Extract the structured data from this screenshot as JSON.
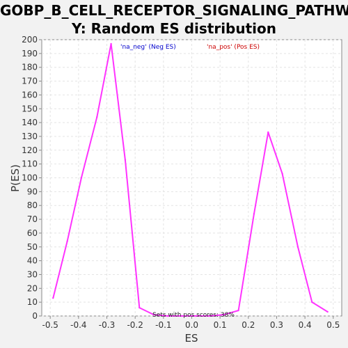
{
  "chart_data": {
    "type": "line",
    "title": "GOBP_B_CELL_RECEPTOR_SIGNALING_PATHWAY: Random ES distribution",
    "title_line1": "GOBP_B_CELL_RECEPTOR_SIGNALING_PATHWA",
    "title_line2": "Y: Random ES distribution",
    "xlabel": "ES",
    "ylabel": "P(ES)",
    "xlim": [
      -0.53,
      0.53
    ],
    "ylim": [
      0,
      200
    ],
    "xticks": [
      -0.5,
      -0.4,
      -0.3,
      -0.2,
      -0.1,
      0.0,
      0.1,
      0.2,
      0.3,
      0.4,
      0.5
    ],
    "xtick_labels": [
      "-0.5",
      "-0.4",
      "-0.3",
      "-0.2",
      "-0.1",
      "0.0",
      "0.1",
      "0.2",
      "0.3",
      "0.4",
      "0.5"
    ],
    "yticks": [
      0,
      10,
      20,
      30,
      40,
      50,
      60,
      70,
      80,
      90,
      100,
      110,
      120,
      130,
      140,
      150,
      160,
      170,
      180,
      190,
      200
    ],
    "grid": true,
    "line_color": "#ff33ff",
    "legend": [
      {
        "label": "'na_neg' (Neg ES)",
        "color": "#0000cc"
      },
      {
        "label": "'na_pos' (Pos ES)",
        "color": "#cc0000"
      }
    ],
    "annotation": "Sets with pos scores: 38%",
    "series": [
      {
        "x": [
          -0.49,
          -0.44,
          -0.39,
          -0.335,
          -0.285,
          -0.235,
          -0.185,
          -0.135,
          -0.085,
          -0.035,
          0.015,
          0.065,
          0.115,
          0.165,
          0.22,
          0.27,
          0.32,
          0.375,
          0.425,
          0.48
        ],
        "y": [
          13,
          54,
          100,
          144,
          197,
          113,
          6,
          1,
          0,
          0,
          0,
          0,
          1,
          4,
          74,
          133,
          103,
          50,
          10,
          3
        ]
      }
    ]
  }
}
